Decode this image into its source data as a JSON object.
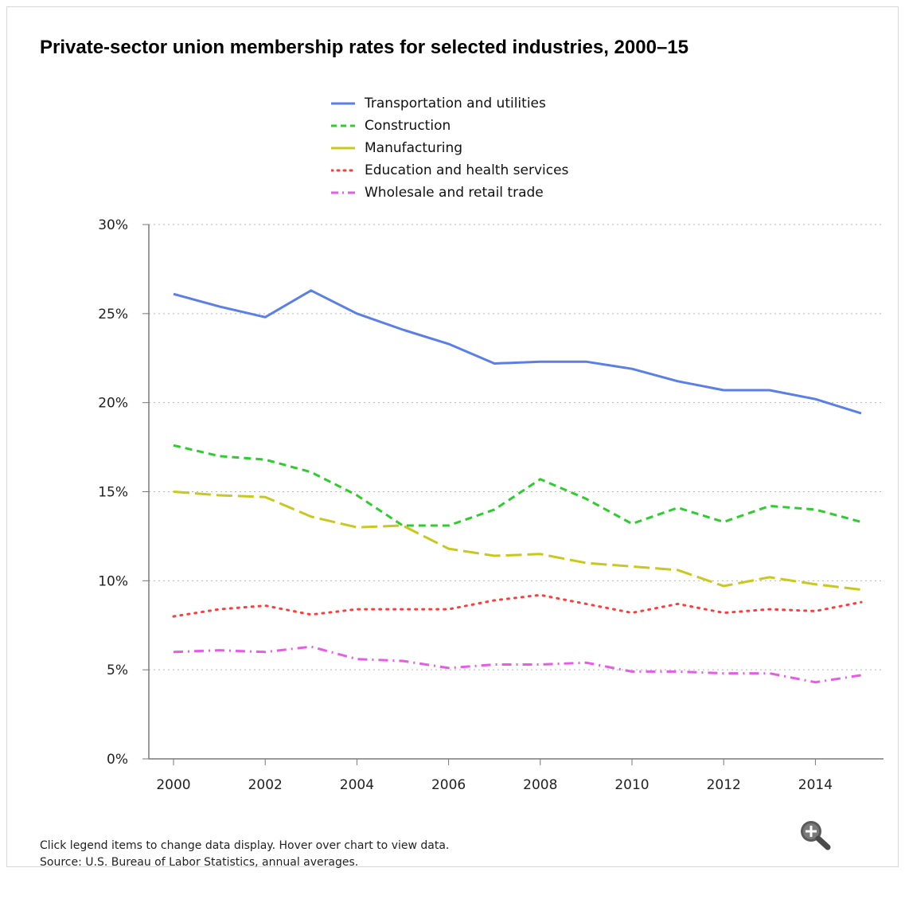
{
  "chart_data": {
    "type": "line",
    "title": "Private-sector union membership rates for selected industries, 2000–15",
    "x": [
      2000,
      2001,
      2002,
      2003,
      2004,
      2005,
      2006,
      2007,
      2008,
      2009,
      2010,
      2011,
      2012,
      2013,
      2014,
      2015
    ],
    "xticks": [
      "2000",
      "2002",
      "2004",
      "2006",
      "2008",
      "2010",
      "2012",
      "2014"
    ],
    "yticks": [
      "0%",
      "5%",
      "10%",
      "15%",
      "20%",
      "25%",
      "30%"
    ],
    "ylim": [
      0,
      30
    ],
    "grid": true,
    "legend_position": "top-center",
    "series": [
      {
        "name": "Transportation and utilities",
        "color": "#5b7fe8",
        "style": "solid",
        "values": [
          26.1,
          25.4,
          24.8,
          26.3,
          25.0,
          24.1,
          23.3,
          22.2,
          22.3,
          22.3,
          21.9,
          21.2,
          20.7,
          20.7,
          20.2,
          19.4
        ]
      },
      {
        "name": "Construction",
        "color": "#2ecc2e",
        "style": "dashed",
        "values": [
          17.6,
          17.0,
          16.8,
          16.1,
          14.8,
          13.1,
          13.1,
          14.0,
          15.7,
          14.6,
          13.2,
          14.1,
          13.3,
          14.2,
          14.0,
          13.3
        ]
      },
      {
        "name": "Manufacturing",
        "color": "#c8c81e",
        "style": "longdash",
        "values": [
          15.0,
          14.8,
          14.7,
          13.6,
          13.0,
          13.1,
          11.8,
          11.4,
          11.5,
          11.0,
          10.8,
          10.6,
          9.7,
          10.2,
          9.8,
          9.5
        ]
      },
      {
        "name": "Education and health services",
        "color": "#ff3b3b",
        "style": "dotted",
        "values": [
          8.0,
          8.4,
          8.6,
          8.1,
          8.4,
          8.4,
          8.4,
          8.9,
          9.2,
          8.7,
          8.2,
          8.7,
          8.2,
          8.4,
          8.3,
          8.8
        ]
      },
      {
        "name": "Wholesale and retail trade",
        "color": "#e65ce6",
        "style": "dashdot",
        "values": [
          6.0,
          6.1,
          6.0,
          6.3,
          5.6,
          5.5,
          5.1,
          5.3,
          5.3,
          5.4,
          4.9,
          4.9,
          4.8,
          4.8,
          4.3,
          4.7
        ]
      }
    ]
  },
  "footnote": {
    "line1": "Click legend items to change data display. Hover over chart to view data.",
    "line2": "Source: U.S. Bureau of Labor Statistics, annual averages."
  },
  "zoom_icon": "magnifier-plus-icon"
}
